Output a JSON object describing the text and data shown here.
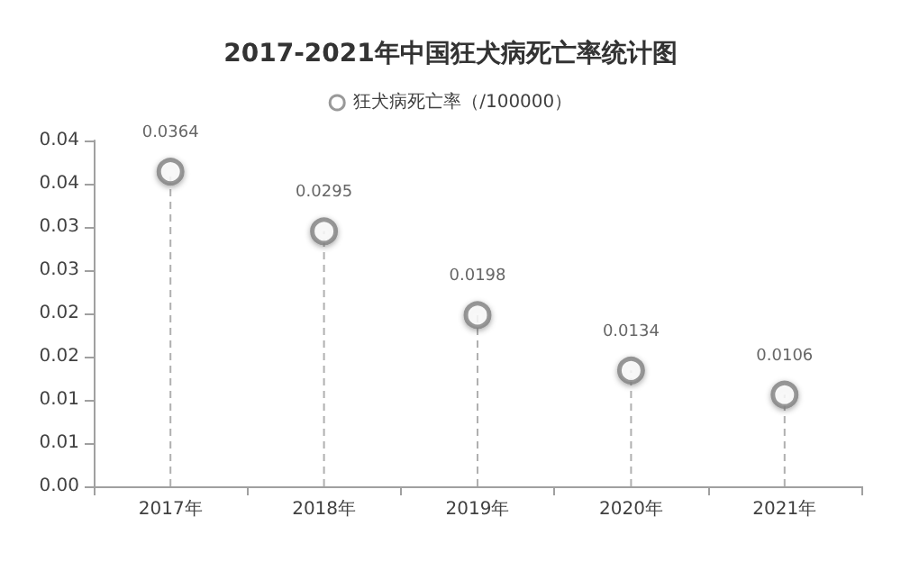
{
  "chart_data": {
    "type": "lollipop",
    "title": "2017-2021年中国狂犬病死亡率统计图",
    "categories": [
      "2017年",
      "2018年",
      "2019年",
      "2020年",
      "2021年"
    ],
    "series": [
      {
        "name": "狂犬病死亡率（/100000）",
        "color": "#7f7f7f",
        "values": [
          0.0364,
          0.0295,
          0.0198,
          0.0134,
          0.0106
        ]
      }
    ],
    "ylim": [
      0,
      0.04
    ],
    "yticks": [
      {
        "value": 0,
        "label": "0.00"
      },
      {
        "value": 0.005,
        "label": "0.01"
      },
      {
        "value": 0.01,
        "label": "0.01"
      },
      {
        "value": 0.015,
        "label": "0.02"
      },
      {
        "value": 0.02,
        "label": "0.02"
      },
      {
        "value": 0.025,
        "label": "0.03"
      },
      {
        "value": 0.03,
        "label": "0.03"
      },
      {
        "value": 0.035,
        "label": "0.04"
      },
      {
        "value": 0.04,
        "label": "0.04"
      }
    ],
    "data_labels": true,
    "legend": "top",
    "marker": "circle",
    "line_style": "dashed"
  }
}
